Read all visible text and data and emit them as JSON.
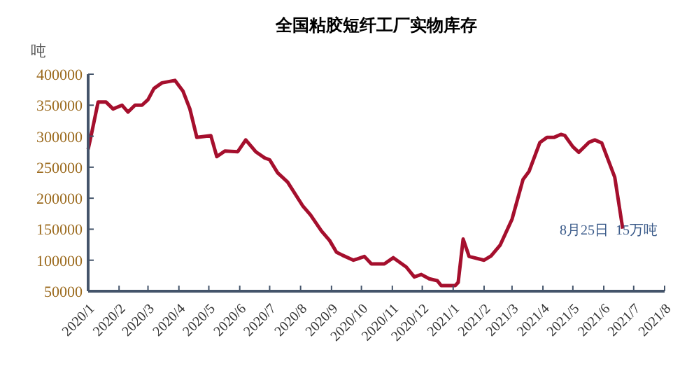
{
  "chart_data": {
    "type": "line",
    "title": "全国粘胶短纤工厂实物库存",
    "ylabel": "吨",
    "x": [
      "2020-01-01",
      "2020-01-04",
      "2020-01-11",
      "2020-01-19",
      "2020-01-26",
      "2020-02-04",
      "2020-02-10",
      "2020-02-17",
      "2020-02-24",
      "2020-03-01",
      "2020-03-07",
      "2020-03-15",
      "2020-03-28",
      "2020-04-05",
      "2020-04-12",
      "2020-04-19",
      "2020-05-03",
      "2020-05-09",
      "2020-05-17",
      "2020-05-30",
      "2020-06-07",
      "2020-06-17",
      "2020-06-26",
      "2020-07-01",
      "2020-07-09",
      "2020-07-19",
      "2020-08-03",
      "2020-08-11",
      "2020-08-22",
      "2020-08-30",
      "2020-09-06",
      "2020-09-12",
      "2020-09-23",
      "2020-10-04",
      "2020-10-11",
      "2020-10-24",
      "2020-11-02",
      "2020-11-15",
      "2020-11-23",
      "2020-11-30",
      "2020-12-08",
      "2020-12-16",
      "2020-12-20",
      "2021-01-03",
      "2021-01-06",
      "2021-01-11",
      "2021-01-17",
      "2021-02-01",
      "2021-02-08",
      "2021-02-17",
      "2021-03-01",
      "2021-03-12",
      "2021-03-18",
      "2021-03-29",
      "2021-04-05",
      "2021-04-12",
      "2021-04-19",
      "2021-04-23",
      "2021-05-01",
      "2021-05-07",
      "2021-05-17",
      "2021-05-23",
      "2021-05-30",
      "2021-06-12",
      "2021-06-20"
    ],
    "series": [
      {
        "color": "#a50f2d",
        "values": [
          279000,
          301000,
          355000,
          355000,
          344000,
          350000,
          339000,
          350000,
          350000,
          359000,
          377000,
          386000,
          390000,
          373000,
          344000,
          298000,
          301000,
          267000,
          276000,
          275000,
          294000,
          275000,
          265000,
          262000,
          241000,
          226000,
          188000,
          173000,
          147000,
          132000,
          113000,
          108000,
          100000,
          106000,
          94000,
          94000,
          104000,
          89000,
          73000,
          77000,
          70000,
          67000,
          59000,
          59000,
          64000,
          134000,
          106000,
          100000,
          107000,
          124000,
          166000,
          230000,
          243000,
          290000,
          298000,
          298000,
          303000,
          301000,
          283000,
          274000,
          290000,
          294000,
          289000,
          234000,
          151000
        ]
      }
    ],
    "xlim": [
      "2020-01-01",
      "2021-08-01"
    ],
    "xticks": [
      {
        "value": "2020-01",
        "label": "2020/1"
      },
      {
        "value": "2020-02",
        "label": "2020/2"
      },
      {
        "value": "2020-03",
        "label": "2020/3"
      },
      {
        "value": "2020-04",
        "label": "2020/4"
      },
      {
        "value": "2020-05",
        "label": "2020/5"
      },
      {
        "value": "2020-06",
        "label": "2020/6"
      },
      {
        "value": "2020-07",
        "label": "2020/7"
      },
      {
        "value": "2020-08",
        "label": "2020/8"
      },
      {
        "value": "2020-09",
        "label": "2020/9"
      },
      {
        "value": "2020-10",
        "label": "2020/10"
      },
      {
        "value": "2020-11",
        "label": "2020/11"
      },
      {
        "value": "2020-12",
        "label": "2020/12"
      },
      {
        "value": "2021-01",
        "label": "2021/1"
      },
      {
        "value": "2021-02",
        "label": "2021/2"
      },
      {
        "value": "2021-03",
        "label": "2021/3"
      },
      {
        "value": "2021-04",
        "label": "2021/4"
      },
      {
        "value": "2021-05",
        "label": "2021/5"
      },
      {
        "value": "2021-06",
        "label": "2021/6"
      },
      {
        "value": "2021-07",
        "label": "2021/7"
      },
      {
        "value": "2021-08",
        "label": "2021/8"
      }
    ],
    "ylim": [
      50000,
      400000
    ],
    "yticks": [
      50000,
      100000,
      150000,
      200000,
      250000,
      300000,
      350000,
      400000
    ],
    "grid": false,
    "marker": "none",
    "line_style": "solid",
    "annotations": [
      "8月25日  15万吨"
    ]
  }
}
